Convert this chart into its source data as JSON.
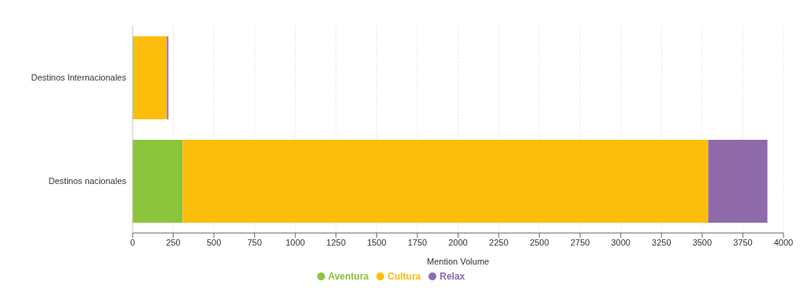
{
  "chart_data": {
    "type": "bar",
    "orientation": "horizontal",
    "stacked": true,
    "categories": [
      "Destinos Internacionales",
      "Destinos nacionales"
    ],
    "series": [
      {
        "name": "Aventura",
        "color": "#8cc43c",
        "values": [
          8,
          307
        ]
      },
      {
        "name": "Cultura",
        "color": "#fdbd0c",
        "values": [
          203,
          3230
        ]
      },
      {
        "name": "Relax",
        "color": "#8f6aab",
        "values": [
          9,
          364
        ]
      }
    ],
    "xlabel": "Mention Volume",
    "xlim": [
      0,
      4000
    ],
    "xticks": [
      0,
      250,
      500,
      750,
      1000,
      1250,
      1500,
      1750,
      2000,
      2250,
      2500,
      2750,
      3000,
      3250,
      3500,
      3750,
      4000
    ],
    "grid": "x",
    "legend": "bottom"
  }
}
